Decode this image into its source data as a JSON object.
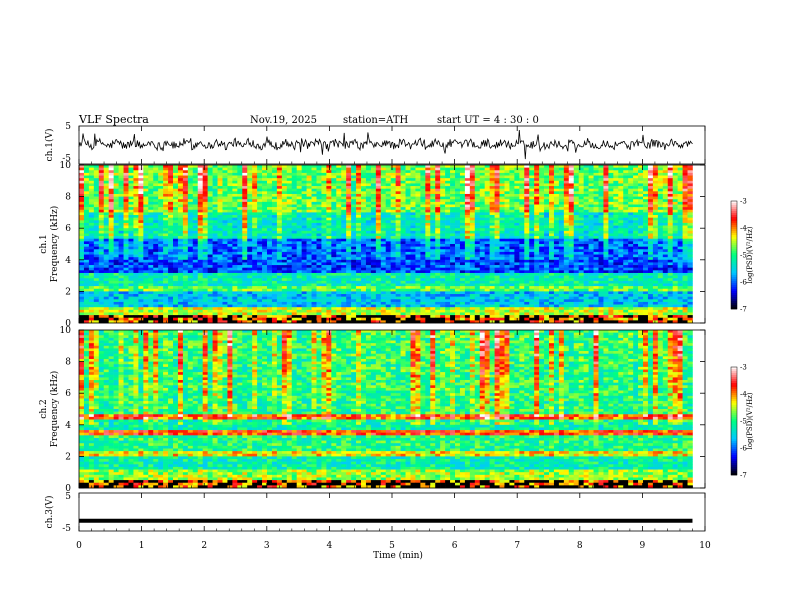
{
  "header": {
    "title": "VLF  Spectra",
    "date": "Nov.19, 2025",
    "station": "station=ATH",
    "start": "start  UT  =   4  : 30 : 0"
  },
  "chart_data": [
    {
      "type": "line",
      "name": "ch1-waveform",
      "ylabel": "ch.1(V)",
      "ylim": [
        -5,
        5
      ],
      "ytick_labels": [
        "5",
        "-5"
      ],
      "xlim": [
        0,
        10
      ],
      "note": "noisy waveform centered near 0 V, ending at 9.8 min"
    },
    {
      "type": "heatmap",
      "name": "ch1-spectrogram",
      "ylabel": "ch.1\nFrequency  (kHz)",
      "ylim": [
        0,
        10
      ],
      "ytick_labels": [
        "0",
        "2",
        "4",
        "6",
        "8",
        "10"
      ],
      "xlim": [
        0,
        10
      ],
      "colorbar": {
        "label": "log(PSD)(V²/Hz)",
        "range": [
          -7,
          -3
        ],
        "tick_labels": [
          "-3",
          "-4",
          "-5",
          "-6",
          "-7"
        ]
      },
      "bands": [
        {
          "from": 0.0,
          "to": 0.5,
          "level": "mixed"
        },
        {
          "from": 0.5,
          "to": 1.0,
          "level": -4.5
        },
        {
          "from": 1.0,
          "to": 2.0,
          "level": -5.6
        },
        {
          "from": 2.0,
          "to": 2.4,
          "level": -4.8
        },
        {
          "from": 2.4,
          "to": 3.2,
          "level": -5.2
        },
        {
          "from": 3.2,
          "to": 5.3,
          "level": -6.1
        },
        {
          "from": 5.3,
          "to": 7.0,
          "level": -5.4
        },
        {
          "from": 7.0,
          "to": 10.0,
          "level": -4.9
        }
      ]
    },
    {
      "type": "heatmap",
      "name": "ch2-spectrogram",
      "ylabel": "ch.2\nFrequency  (kHz)",
      "ylim": [
        0,
        10
      ],
      "ytick_labels": [
        "0",
        "2",
        "4",
        "6",
        "8",
        "10"
      ],
      "xlim": [
        0,
        10
      ],
      "colorbar": {
        "label": "log(PSD)(V²/Hz)",
        "range": [
          -7,
          -3
        ],
        "tick_labels": [
          "-3",
          "-4",
          "-5",
          "-6",
          "-7"
        ]
      },
      "bands": [
        {
          "from": 0.0,
          "to": 0.5,
          "level": "mixed"
        },
        {
          "from": 0.5,
          "to": 1.2,
          "level": -4.6
        },
        {
          "from": 1.2,
          "to": 2.0,
          "level": -5.2
        },
        {
          "from": 2.0,
          "to": 2.4,
          "level": -4.3
        },
        {
          "from": 2.4,
          "to": 3.4,
          "level": -5.0
        },
        {
          "from": 3.4,
          "to": 3.6,
          "level": -3.8
        },
        {
          "from": 3.6,
          "to": 4.4,
          "level": -5.2
        },
        {
          "from": 4.4,
          "to": 4.6,
          "level": -4.0
        },
        {
          "from": 4.6,
          "to": 10.0,
          "level": -5.1
        }
      ]
    },
    {
      "type": "line",
      "name": "ch3-waveform",
      "ylabel": "ch.3(V)",
      "ylim": [
        -5,
        5
      ],
      "ytick_labels": [
        "5",
        "-5"
      ],
      "xlim": [
        0,
        10
      ],
      "constant_value": -2.3
    }
  ],
  "x_axis": {
    "label": "Time  (min)",
    "tick_labels": [
      "0",
      "1",
      "2",
      "3",
      "4",
      "5",
      "6",
      "7",
      "8",
      "9",
      "10"
    ],
    "data_end_min": 9.8
  },
  "colors": {
    "background": "#ffffff",
    "axis": "#000000",
    "colormap": [
      "#000000",
      "#0000ff",
      "#00c8ff",
      "#00ff80",
      "#ffff00",
      "#ff0000",
      "#ffffff"
    ]
  }
}
